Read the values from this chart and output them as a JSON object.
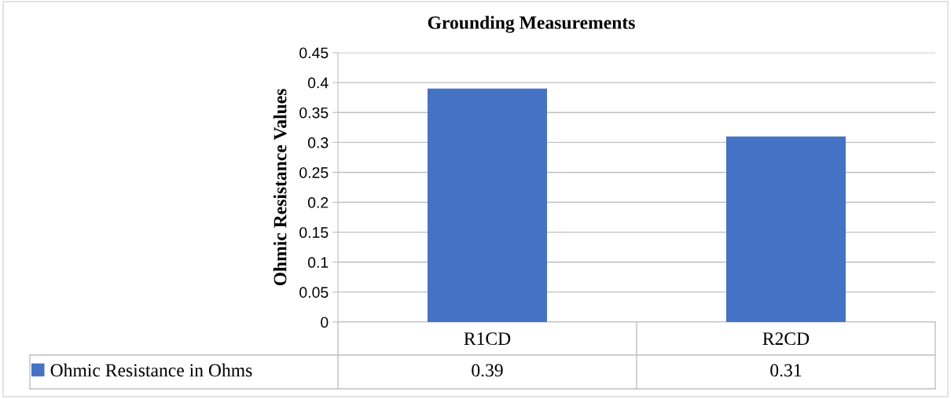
{
  "chart_data": {
    "type": "bar",
    "title": "Grounding Measurements",
    "ylabel": "Ohmic Resistance Values",
    "categories": [
      "R1CD",
      "R2CD"
    ],
    "series": [
      {
        "name": "Ohmic Resistance in Ohms",
        "color": "#4472c4",
        "values": [
          0.39,
          0.31
        ]
      }
    ],
    "ylim": [
      0,
      0.45
    ],
    "yticks": [
      0,
      0.05,
      0.1,
      0.15,
      0.2,
      0.25,
      0.3,
      0.35,
      0.4,
      0.45
    ],
    "grid": "y",
    "legend": "bottom",
    "data_labels": true
  }
}
